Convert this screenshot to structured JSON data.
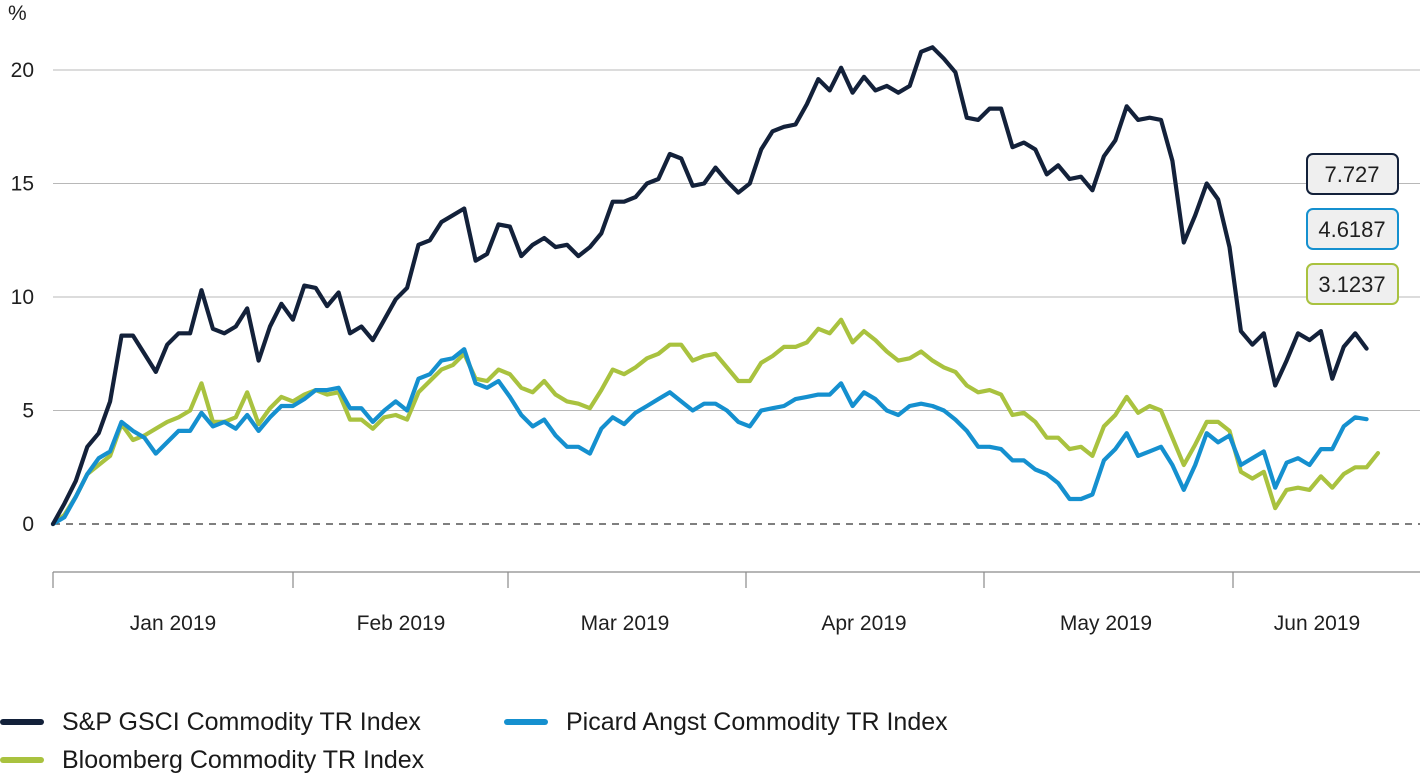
{
  "chart_data": {
    "type": "line",
    "unit_label": "%",
    "x_tick_labels": [
      "Jan 2019",
      "Feb 2019",
      "Mar 2019",
      "Apr 2019",
      "May 2019",
      "Jun 2019"
    ],
    "y_ticks": [
      0,
      5,
      10,
      15,
      20
    ],
    "ylim": [
      -2,
      22
    ],
    "x_range": [
      0,
      140
    ],
    "grid": "horizontal",
    "zero_line": "dashed",
    "legend_position": "bottom",
    "series": [
      {
        "name": "S&P GSCI Commodity TR Index",
        "color": "#13213a",
        "end_label": "7.727",
        "values": [
          0.0,
          0.9,
          1.9,
          3.4,
          4.0,
          5.4,
          8.3,
          8.3,
          7.5,
          6.7,
          7.9,
          8.4,
          8.4,
          10.3,
          8.6,
          8.4,
          8.7,
          9.5,
          7.2,
          8.7,
          9.7,
          9.0,
          10.5,
          10.4,
          9.6,
          10.2,
          8.4,
          8.7,
          8.1,
          9.0,
          9.9,
          10.4,
          12.3,
          12.5,
          13.3,
          13.6,
          13.9,
          11.6,
          11.9,
          13.2,
          13.1,
          11.8,
          12.3,
          12.6,
          12.2,
          12.3,
          11.8,
          12.2,
          12.8,
          14.2,
          14.2,
          14.4,
          15.0,
          15.2,
          16.3,
          16.1,
          14.9,
          15.0,
          15.7,
          15.1,
          14.6,
          15.0,
          16.5,
          17.3,
          17.5,
          17.6,
          18.5,
          19.6,
          19.1,
          20.1,
          19.0,
          19.7,
          19.1,
          19.3,
          19.0,
          19.3,
          20.8,
          21.0,
          20.5,
          19.9,
          17.9,
          17.8,
          18.3,
          18.3,
          16.6,
          16.8,
          16.5,
          15.4,
          15.8,
          15.2,
          15.3,
          14.7,
          16.2,
          16.9,
          18.4,
          17.8,
          17.9,
          17.8,
          16.0,
          12.4,
          13.6,
          15.0,
          14.3,
          12.2,
          8.5,
          7.9,
          8.4,
          6.1,
          7.2,
          8.4,
          8.1,
          8.5,
          6.4,
          7.8,
          8.4,
          7.727
        ],
        "x_values": [
          0,
          1,
          2,
          3,
          4,
          5,
          6,
          7,
          8,
          9,
          10,
          11,
          12,
          13,
          14,
          15,
          16,
          17,
          18,
          19,
          20,
          21,
          22,
          23,
          24,
          25,
          26,
          27,
          28,
          29,
          30,
          31,
          32,
          33,
          34,
          35,
          36,
          37,
          38,
          39,
          40,
          41,
          42,
          43,
          44,
          45,
          46,
          47,
          48,
          49,
          50,
          51,
          52,
          53,
          54,
          55,
          56,
          57,
          58,
          59,
          60,
          61,
          62,
          63,
          64,
          65,
          66,
          67,
          68,
          69,
          70,
          71,
          72,
          73,
          74,
          75,
          76,
          77,
          78,
          79,
          80,
          81,
          82,
          83,
          84,
          85,
          86,
          87,
          88,
          89,
          90,
          91,
          92,
          93,
          94,
          95,
          96,
          97,
          98,
          99,
          100,
          101,
          102,
          103,
          104,
          105,
          106,
          107,
          108,
          109,
          110,
          111,
          112,
          113,
          114,
          115
        ]
      },
      {
        "name": "Picard Angst Commodity TR Index",
        "color": "#1590cf",
        "end_label": "4.6187",
        "values": [
          0.0,
          0.3,
          1.2,
          2.2,
          2.9,
          3.2,
          4.5,
          4.1,
          3.8,
          3.1,
          3.6,
          4.1,
          4.1,
          4.9,
          4.3,
          4.5,
          4.2,
          4.8,
          4.1,
          4.7,
          5.2,
          5.2,
          5.5,
          5.9,
          5.9,
          6.0,
          5.1,
          5.1,
          4.5,
          5.0,
          5.4,
          5.0,
          6.4,
          6.6,
          7.2,
          7.3,
          7.7,
          6.2,
          6.0,
          6.3,
          5.6,
          4.8,
          4.3,
          4.6,
          3.9,
          3.4,
          3.4,
          3.1,
          4.2,
          4.7,
          4.4,
          4.9,
          5.2,
          5.5,
          5.8,
          5.4,
          5.0,
          5.3,
          5.3,
          5.0,
          4.5,
          4.3,
          5.0,
          5.1,
          5.2,
          5.5,
          5.6,
          5.7,
          5.7,
          6.2,
          5.2,
          5.8,
          5.5,
          5.0,
          4.8,
          5.2,
          5.3,
          5.2,
          5.0,
          4.6,
          4.1,
          3.4,
          3.4,
          3.3,
          2.8,
          2.8,
          2.4,
          2.2,
          1.8,
          1.1,
          1.1,
          1.3,
          2.8,
          3.3,
          4.0,
          3.0,
          3.2,
          3.4,
          2.6,
          1.5,
          2.6,
          4.0,
          3.6,
          3.9,
          2.6,
          2.9,
          3.2,
          1.6,
          2.7,
          2.9,
          2.6,
          3.3,
          3.3,
          4.3,
          4.7,
          4.6187
        ],
        "x_values": [
          0,
          1,
          2,
          3,
          4,
          5,
          6,
          7,
          8,
          9,
          10,
          11,
          12,
          13,
          14,
          15,
          16,
          17,
          18,
          19,
          20,
          21,
          22,
          23,
          24,
          25,
          26,
          27,
          28,
          29,
          30,
          31,
          32,
          33,
          34,
          35,
          36,
          37,
          38,
          39,
          40,
          41,
          42,
          43,
          44,
          45,
          46,
          47,
          48,
          49,
          50,
          51,
          52,
          53,
          54,
          55,
          56,
          57,
          58,
          59,
          60,
          61,
          62,
          63,
          64,
          65,
          66,
          67,
          68,
          69,
          70,
          71,
          72,
          73,
          74,
          75,
          76,
          77,
          78,
          79,
          80,
          81,
          82,
          83,
          84,
          85,
          86,
          87,
          88,
          89,
          90,
          91,
          92,
          93,
          94,
          95,
          96,
          97,
          98,
          99,
          100,
          101,
          102,
          103,
          104,
          105,
          106,
          107,
          108,
          109,
          110,
          111,
          112,
          113,
          114,
          115
        ]
      },
      {
        "name": "Bloomberg Commodity TR Index",
        "color": "#a9c23f",
        "end_label": "3.1237",
        "values": [
          0.0,
          0.4,
          1.2,
          2.2,
          2.6,
          3.0,
          4.4,
          3.7,
          3.9,
          4.2,
          4.5,
          4.7,
          5.0,
          6.2,
          4.5,
          4.5,
          4.7,
          5.8,
          4.4,
          5.1,
          5.6,
          5.4,
          5.7,
          5.9,
          5.7,
          5.8,
          4.6,
          4.6,
          4.2,
          4.7,
          4.8,
          4.6,
          5.8,
          6.3,
          6.8,
          7.0,
          7.5,
          6.4,
          6.3,
          6.8,
          6.6,
          6.0,
          5.8,
          6.3,
          5.7,
          5.4,
          5.3,
          5.1,
          5.9,
          6.8,
          6.6,
          6.9,
          7.3,
          7.5,
          7.9,
          7.9,
          7.2,
          7.4,
          7.5,
          6.9,
          6.3,
          6.3,
          7.1,
          7.4,
          7.8,
          7.8,
          8.0,
          8.6,
          8.4,
          9.0,
          8.0,
          8.5,
          8.1,
          7.6,
          7.2,
          7.3,
          7.6,
          7.2,
          6.9,
          6.7,
          6.1,
          5.8,
          5.9,
          5.7,
          4.8,
          4.9,
          4.5,
          3.8,
          3.8,
          3.3,
          3.4,
          3.0,
          4.3,
          4.8,
          5.6,
          4.9,
          5.2,
          5.0,
          3.8,
          2.6,
          3.5,
          4.5,
          4.5,
          4.1,
          2.3,
          2.0,
          2.3,
          0.7,
          1.5,
          1.6,
          1.5,
          2.1,
          1.6,
          2.2,
          2.5,
          2.5,
          3.1237
        ],
        "x_values": [
          0,
          1,
          2,
          3,
          4,
          5,
          6,
          7,
          8,
          9,
          10,
          11,
          12,
          13,
          14,
          15,
          16,
          17,
          18,
          19,
          20,
          21,
          22,
          23,
          24,
          25,
          26,
          27,
          28,
          29,
          30,
          31,
          32,
          33,
          34,
          35,
          36,
          37,
          38,
          39,
          40,
          41,
          42,
          43,
          44,
          45,
          46,
          47,
          48,
          49,
          50,
          51,
          52,
          53,
          54,
          55,
          56,
          57,
          58,
          59,
          60,
          61,
          62,
          63,
          64,
          65,
          66,
          67,
          68,
          69,
          70,
          71,
          72,
          73,
          74,
          75,
          76,
          77,
          78,
          79,
          80,
          81,
          82,
          83,
          84,
          85,
          86,
          87,
          88,
          89,
          90,
          91,
          92,
          93,
          94,
          95,
          96,
          97,
          98,
          99,
          100,
          101,
          102,
          103,
          104,
          105,
          106,
          107,
          108,
          109,
          110,
          111,
          112,
          113,
          114,
          115,
          116
        ]
      }
    ]
  },
  "legend": {
    "items": [
      {
        "label": "S&P GSCI Commodity TR Index",
        "color": "#13213a"
      },
      {
        "label": "Picard Angst Commodity TR Index",
        "color": "#1590cf"
      },
      {
        "label": "Bloomberg Commodity TR Index",
        "color": "#a9c23f"
      }
    ]
  }
}
